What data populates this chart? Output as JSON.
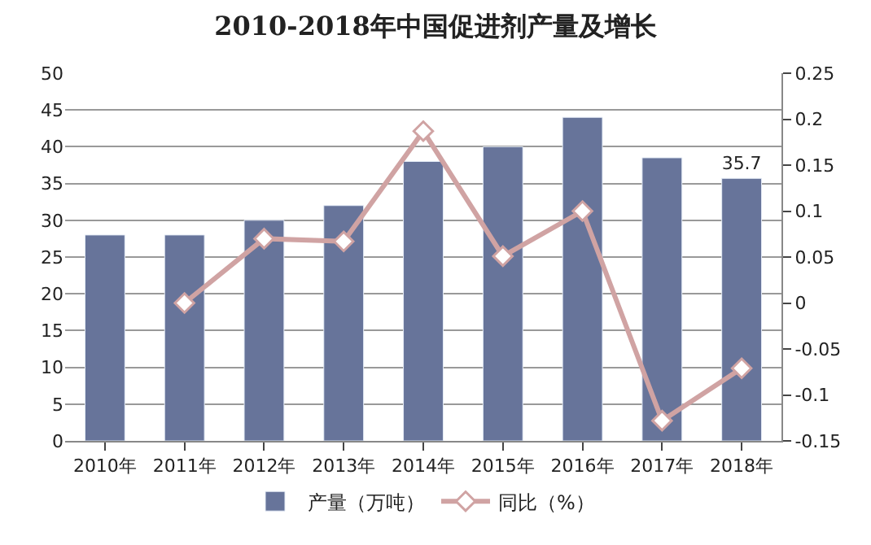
{
  "chart_data": {
    "type": "bar",
    "title": "2010-2018年中国促进剂产量及增长",
    "categories": [
      "2010年",
      "2011年",
      "2012年",
      "2013年",
      "2014年",
      "2015年",
      "2016年",
      "2017年",
      "2018年"
    ],
    "series": [
      {
        "name": "产量（万吨）",
        "color": "#67749a",
        "values": [
          28,
          28,
          30,
          32,
          38,
          40,
          44,
          38.5,
          35.7
        ],
        "value_labels": [
          null,
          null,
          null,
          null,
          null,
          null,
          null,
          null,
          "35.7"
        ]
      },
      {
        "name": "同比（%）",
        "type": "line",
        "axis": "y2",
        "color": "#d0a3a3",
        "marker": "diamond",
        "values": [
          null,
          0.0,
          0.07,
          0.067,
          0.187,
          0.051,
          0.1,
          -0.128,
          -0.071
        ]
      }
    ],
    "ylim": [
      0,
      50
    ],
    "yticks": [
      0,
      5,
      10,
      15,
      20,
      25,
      30,
      35,
      40,
      45,
      50
    ],
    "y2lim": [
      -0.15,
      0.25
    ],
    "y2ticks": [
      -0.15,
      -0.1,
      -0.05,
      0,
      0.05,
      0.1,
      0.15,
      0.2,
      0.25
    ],
    "grid": "y",
    "legend": "bottom"
  }
}
